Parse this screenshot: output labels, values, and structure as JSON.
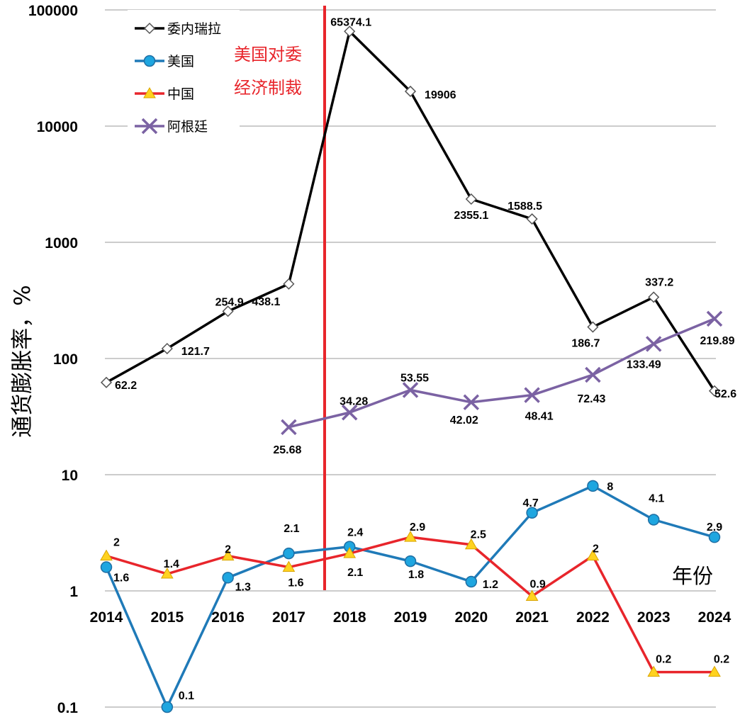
{
  "chart_data": {
    "type": "line",
    "title": "",
    "xlabel": "年份",
    "ylabel": "通货膨胀率，%",
    "y_scale": "log",
    "ylim": [
      0.1,
      100000
    ],
    "y_ticks": [
      "0.1",
      "1",
      "10",
      "100",
      "1000",
      "10000",
      "100000"
    ],
    "categories": [
      "2014",
      "2015",
      "2016",
      "2017",
      "2018",
      "2019",
      "2020",
      "2021",
      "2022",
      "2023",
      "2024"
    ],
    "grid": "horizontal",
    "legend_position": "top-left",
    "annotation": {
      "lines": [
        "美国对委",
        "经济制裁"
      ],
      "position_between": [
        "2017",
        "2018"
      ],
      "color": "#e8252b"
    },
    "series": [
      {
        "name": "委内瑞拉",
        "color": "#000000",
        "marker": "diamond",
        "values": [
          62.2,
          121.7,
          254.9,
          438.1,
          65374.1,
          19906,
          2355.1,
          1588.5,
          186.7,
          337.2,
          52.6
        ],
        "labels": [
          "62.2",
          "121.7",
          "254.9",
          "438.1",
          "65374.1",
          "19906",
          "2355.1",
          "1588.5",
          "186.7",
          "337.2",
          "52.6"
        ]
      },
      {
        "name": "美国",
        "color": "#1f7ab8",
        "marker": "circle",
        "values": [
          1.6,
          0.1,
          1.3,
          2.1,
          2.4,
          1.8,
          1.2,
          4.7,
          8,
          4.1,
          2.9
        ],
        "labels": [
          "1.6",
          "0.1",
          "1.3",
          "2.1",
          "2.4",
          "1.8",
          "1.2",
          "4.7",
          "8",
          "4.1",
          "2.9"
        ]
      },
      {
        "name": "中国",
        "color": "#e8252b",
        "marker": "triangle",
        "values": [
          2,
          1.4,
          2,
          1.6,
          2.1,
          2.9,
          2.5,
          0.9,
          2,
          0.2,
          0.2
        ],
        "labels": [
          "2",
          "1.4",
          "2",
          "1.6",
          "2.1",
          "2.9",
          "2.5",
          "0.9",
          "2",
          "0.2",
          "0.2"
        ]
      },
      {
        "name": "阿根廷",
        "color": "#7b62a3",
        "marker": "x",
        "values": [
          null,
          null,
          null,
          25.68,
          34.28,
          53.55,
          42.02,
          48.41,
          72.43,
          133.49,
          219.89
        ],
        "labels": [
          null,
          null,
          null,
          "25.68",
          "34.28",
          "53.55",
          "42.02",
          "48.41",
          "72.43",
          "133.49",
          "219.89"
        ]
      }
    ]
  }
}
